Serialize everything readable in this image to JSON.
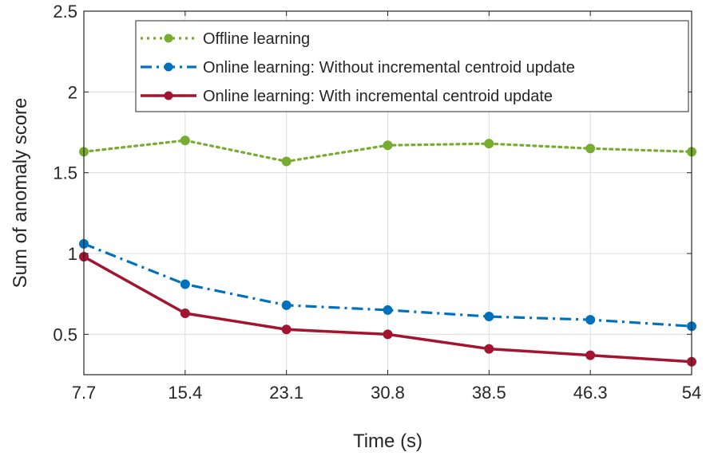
{
  "chart_data": {
    "type": "line",
    "title": "",
    "xlabel": "Time (s)",
    "ylabel": "Sum of anomaly score",
    "x": [
      7.7,
      15.4,
      23.1,
      30.8,
      38.5,
      46.3,
      54
    ],
    "x_tick_labels": [
      "7.7",
      "15.4",
      "23.1",
      "30.8",
      "38.5",
      "46.3",
      "54"
    ],
    "y_ticks": [
      0.5,
      1,
      1.5,
      2,
      2.5
    ],
    "y_tick_labels": [
      "0.5",
      "1",
      "1.5",
      "2",
      "2.5"
    ],
    "xlim": [
      7.7,
      54
    ],
    "ylim": [
      0.25,
      2.5
    ],
    "grid": true,
    "legend_position": "top-right",
    "series": [
      {
        "name": "Offline learning",
        "style": "dotted",
        "color": "#77ac30",
        "values": [
          1.63,
          1.7,
          1.57,
          1.67,
          1.68,
          1.65,
          1.63
        ]
      },
      {
        "name": "Online learning: Without incremental centroid update",
        "style": "dash-dot",
        "color": "#0072bd",
        "values": [
          1.06,
          0.81,
          0.68,
          0.65,
          0.61,
          0.59,
          0.55
        ]
      },
      {
        "name": "Online learning: With incremental centroid update",
        "style": "solid",
        "color": "#a2142f",
        "values": [
          0.98,
          0.63,
          0.53,
          0.5,
          0.41,
          0.37,
          0.33
        ]
      }
    ]
  }
}
